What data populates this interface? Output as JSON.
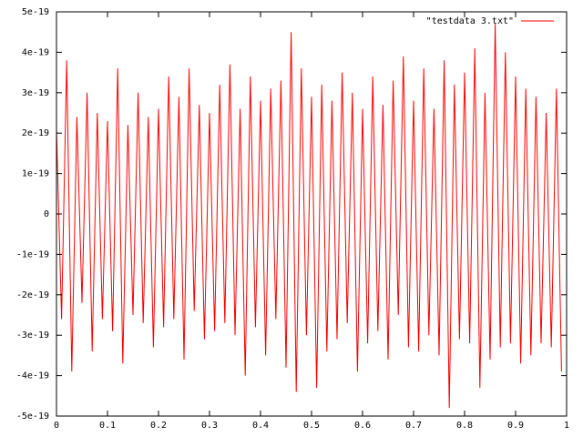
{
  "chart_data": {
    "type": "line",
    "x": [
      0,
      0.01,
      0.02,
      0.03,
      0.04,
      0.05,
      0.06,
      0.07,
      0.08,
      0.09,
      0.1,
      0.11,
      0.12,
      0.13,
      0.14,
      0.15,
      0.16,
      0.17,
      0.18,
      0.19,
      0.2,
      0.21,
      0.22,
      0.23,
      0.24,
      0.25,
      0.26,
      0.27,
      0.28,
      0.29,
      0.3,
      0.31,
      0.32,
      0.33,
      0.34,
      0.35,
      0.36,
      0.37,
      0.38,
      0.39,
      0.4,
      0.41,
      0.42,
      0.43,
      0.44,
      0.45,
      0.46,
      0.47,
      0.48,
      0.49,
      0.5,
      0.51,
      0.52,
      0.53,
      0.54,
      0.55,
      0.56,
      0.57,
      0.58,
      0.59,
      0.6,
      0.61,
      0.62,
      0.63,
      0.64,
      0.65,
      0.66,
      0.67,
      0.68,
      0.69,
      0.7,
      0.71,
      0.72,
      0.73,
      0.74,
      0.75,
      0.76,
      0.77,
      0.78,
      0.79,
      0.8,
      0.81,
      0.82,
      0.83,
      0.84,
      0.85,
      0.86,
      0.87,
      0.88,
      0.89,
      0.9,
      0.91,
      0.92,
      0.93,
      0.94,
      0.95,
      0.96,
      0.97,
      0.98,
      0.99
    ],
    "series": [
      {
        "name": "\"testdata 3.txt\"",
        "color": "#ff0000",
        "values": [
          2.1e-19,
          -2.6e-19,
          3.8e-19,
          -3.9e-19,
          2.4e-19,
          -2.2e-19,
          3e-19,
          -3.4e-19,
          2.5e-19,
          -2.6e-19,
          2.3e-19,
          -2.9e-19,
          3.6e-19,
          -3.7e-19,
          2.2e-19,
          -2.5e-19,
          3e-19,
          -2.7e-19,
          2.4e-19,
          -3.3e-19,
          2.6e-19,
          -2.8e-19,
          3.4e-19,
          -2.6e-19,
          2.9e-19,
          -3.6e-19,
          3.6e-19,
          -2.4e-19,
          2.7e-19,
          -3.1e-19,
          2.5e-19,
          -2.9e-19,
          3.2e-19,
          -2.7e-19,
          3.7e-19,
          -3e-19,
          2.6e-19,
          -4e-19,
          3.4e-19,
          -2.8e-19,
          2.8e-19,
          -3.5e-19,
          3.1e-19,
          -2.6e-19,
          3.3e-19,
          -3.8e-19,
          4.5e-19,
          -4.4e-19,
          3.6e-19,
          -3e-19,
          2.9e-19,
          -4.3e-19,
          3.2e-19,
          -3.4e-19,
          2.8e-19,
          -3.1e-19,
          3.5e-19,
          -2.7e-19,
          3e-19,
          -3.9e-19,
          2.6e-19,
          -3.2e-19,
          3.4e-19,
          -2.9e-19,
          2.7e-19,
          -3.6e-19,
          3.3e-19,
          -2.5e-19,
          3.9e-19,
          -3.3e-19,
          2.8e-19,
          -3.4e-19,
          3.6e-19,
          -3e-19,
          2.6e-19,
          -3.5e-19,
          3.8e-19,
          -4.8e-19,
          3.2e-19,
          -3.1e-19,
          3.5e-19,
          -3.2e-19,
          4.1e-19,
          -4.3e-19,
          3e-19,
          -3.6e-19,
          4.7e-19,
          -3.3e-19,
          4e-19,
          -3.2e-19,
          3.4e-19,
          -3.7e-19,
          3.1e-19,
          -3.5e-19,
          2.9e-19,
          -3.2e-19,
          2.5e-19,
          -3.3e-19,
          3.1e-19,
          -3.9e-19
        ]
      }
    ],
    "xlim": [
      0,
      1
    ],
    "xticks": [
      0,
      0.1,
      0.2,
      0.3,
      0.4,
      0.5,
      0.6,
      0.7,
      0.8,
      0.9,
      1
    ],
    "ylim": [
      -5e-19,
      5e-19
    ],
    "yticks": [
      -5e-19,
      -4e-19,
      -3e-19,
      -2e-19,
      -1e-19,
      0,
      1e-19,
      2e-19,
      3e-19,
      4e-19,
      5e-19
    ],
    "grid": false,
    "legend": "top-right"
  }
}
